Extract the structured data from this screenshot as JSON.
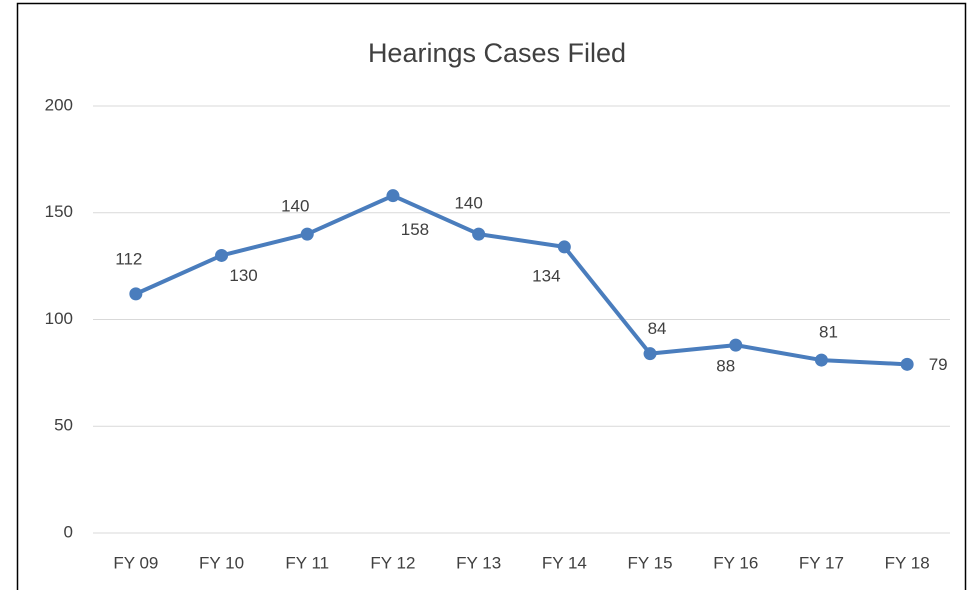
{
  "chart_data": {
    "type": "line",
    "title": "Hearings Cases Filed",
    "categories": [
      "FY 09",
      "FY 10",
      "FY 11",
      "FY 12",
      "FY 13",
      "FY 14",
      "FY 15",
      "FY 16",
      "FY 17",
      "FY 18"
    ],
    "series": [
      {
        "name": "Hearings Cases Filed",
        "color": "#4a7dbd",
        "values": [
          112,
          130,
          140,
          158,
          140,
          134,
          84,
          88,
          81,
          79
        ]
      }
    ],
    "ylim": [
      0,
      200
    ],
    "yticks": [
      0,
      50,
      100,
      150,
      200
    ],
    "grid": true
  }
}
